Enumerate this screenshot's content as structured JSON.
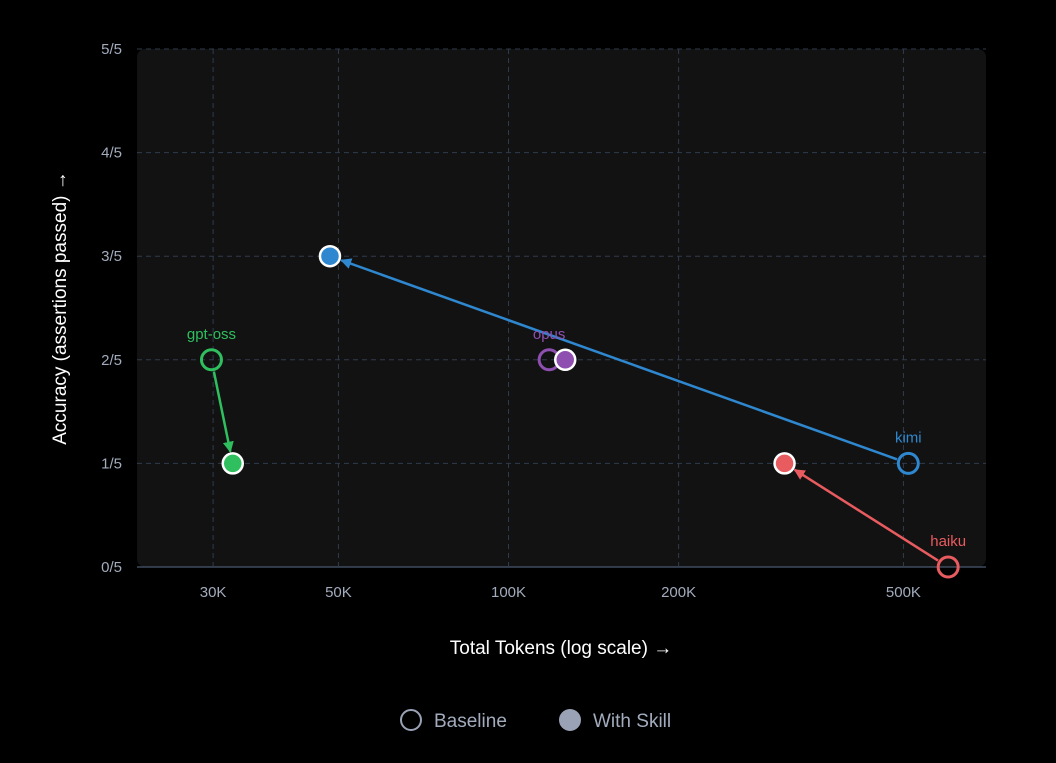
{
  "chart_data": {
    "type": "scatter",
    "xlabel": "Total Tokens (log scale) →",
    "ylabel": "Accuracy (assertions passed) →",
    "xscale": "log",
    "xlim": [
      22000,
      700000
    ],
    "ylim": [
      0,
      5
    ],
    "xticks": [
      {
        "value": 30000,
        "label": "30K"
      },
      {
        "value": 50000,
        "label": "50K"
      },
      {
        "value": 100000,
        "label": "100K"
      },
      {
        "value": 200000,
        "label": "200K"
      },
      {
        "value": 500000,
        "label": "500K"
      }
    ],
    "yticks": [
      {
        "value": 0,
        "label": "0/5"
      },
      {
        "value": 1,
        "label": "1/5"
      },
      {
        "value": 2,
        "label": "2/5"
      },
      {
        "value": 3,
        "label": "3/5"
      },
      {
        "value": 4,
        "label": "4/5"
      },
      {
        "value": 5,
        "label": "5/5"
      }
    ],
    "grid": true,
    "legend": {
      "position": "bottom",
      "items": [
        {
          "label": "Baseline",
          "style": "hollow"
        },
        {
          "label": "With Skill",
          "style": "filled"
        }
      ]
    },
    "series": [
      {
        "name": "gpt-oss",
        "color": "#2fbf5f",
        "baseline": {
          "x": 29800,
          "y": 2
        },
        "with_skill": {
          "x": 32500,
          "y": 1
        },
        "arrow": true
      },
      {
        "name": "kimi",
        "color": "#2f88cf",
        "baseline": {
          "x": 510000,
          "y": 1
        },
        "with_skill": {
          "x": 48300,
          "y": 3
        },
        "arrow": true
      },
      {
        "name": "opus",
        "color": "#8f4fb0",
        "baseline": {
          "x": 118000,
          "y": 2
        },
        "with_skill": {
          "x": 126000,
          "y": 2
        },
        "arrow": false
      },
      {
        "name": "haiku",
        "color": "#e85b5f",
        "baseline": {
          "x": 600000,
          "y": 0
        },
        "with_skill": {
          "x": 308000,
          "y": 1
        },
        "arrow": true
      }
    ]
  }
}
